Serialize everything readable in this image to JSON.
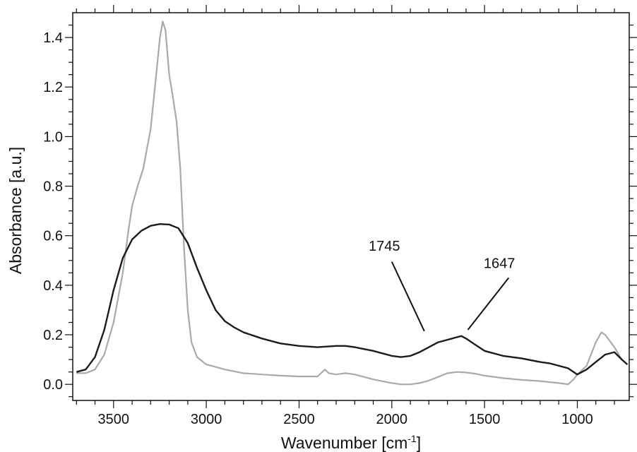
{
  "chart_data": {
    "type": "line",
    "title": "",
    "xlabel": "Wavenumber [cm-1]",
    "xlabel_parts": {
      "main": "Wavenumber [cm",
      "sup": "-1",
      "end": "]"
    },
    "ylabel": "Absorbance [a.u.]",
    "xlim": [
      3720,
      720
    ],
    "x_reversed": true,
    "ylim": [
      -0.065,
      1.5
    ],
    "x_ticks": [
      3500,
      3000,
      2500,
      2000,
      1500,
      1000
    ],
    "y_ticks": [
      0.0,
      0.2,
      0.4,
      0.6,
      0.8,
      1.0,
      1.2,
      1.4
    ],
    "x_tick_labels": [
      "3500",
      "3000",
      "2500",
      "2000",
      "1500",
      "1000"
    ],
    "y_tick_labels": [
      "0.0",
      "0.2",
      "0.4",
      "0.6",
      "0.8",
      "1.0",
      "1.2",
      "1.4"
    ],
    "grid": false,
    "series": [
      {
        "color": "#a6abaf",
        "points": [
          [
            3700,
            0.045
          ],
          [
            3650,
            0.045
          ],
          [
            3600,
            0.06
          ],
          [
            3550,
            0.12
          ],
          [
            3500,
            0.25
          ],
          [
            3450,
            0.45
          ],
          [
            3420,
            0.62
          ],
          [
            3400,
            0.72
          ],
          [
            3370,
            0.8
          ],
          [
            3340,
            0.87
          ],
          [
            3300,
            1.03
          ],
          [
            3270,
            1.25
          ],
          [
            3250,
            1.4
          ],
          [
            3235,
            1.465
          ],
          [
            3220,
            1.43
          ],
          [
            3200,
            1.25
          ],
          [
            3180,
            1.16
          ],
          [
            3160,
            1.06
          ],
          [
            3140,
            0.87
          ],
          [
            3120,
            0.55
          ],
          [
            3100,
            0.3
          ],
          [
            3080,
            0.17
          ],
          [
            3050,
            0.11
          ],
          [
            3000,
            0.08
          ],
          [
            2950,
            0.07
          ],
          [
            2900,
            0.06
          ],
          [
            2800,
            0.045
          ],
          [
            2700,
            0.04
          ],
          [
            2600,
            0.035
          ],
          [
            2500,
            0.032
          ],
          [
            2400,
            0.032
          ],
          [
            2360,
            0.06
          ],
          [
            2340,
            0.045
          ],
          [
            2300,
            0.04
          ],
          [
            2250,
            0.045
          ],
          [
            2200,
            0.04
          ],
          [
            2100,
            0.02
          ],
          [
            2000,
            0.005
          ],
          [
            1950,
            0.0
          ],
          [
            1900,
            0.0
          ],
          [
            1850,
            0.005
          ],
          [
            1800,
            0.015
          ],
          [
            1750,
            0.03
          ],
          [
            1700,
            0.045
          ],
          [
            1650,
            0.05
          ],
          [
            1600,
            0.048
          ],
          [
            1550,
            0.043
          ],
          [
            1500,
            0.035
          ],
          [
            1400,
            0.025
          ],
          [
            1300,
            0.018
          ],
          [
            1200,
            0.013
          ],
          [
            1100,
            0.005
          ],
          [
            1050,
            0.0
          ],
          [
            1020,
            0.02
          ],
          [
            1000,
            0.04
          ],
          [
            950,
            0.075
          ],
          [
            900,
            0.17
          ],
          [
            870,
            0.21
          ],
          [
            850,
            0.2
          ],
          [
            800,
            0.15
          ],
          [
            760,
            0.1
          ],
          [
            730,
            0.08
          ]
        ]
      },
      {
        "color": "#1e1a1a",
        "points": [
          [
            3700,
            0.05
          ],
          [
            3650,
            0.06
          ],
          [
            3600,
            0.11
          ],
          [
            3550,
            0.22
          ],
          [
            3500,
            0.38
          ],
          [
            3450,
            0.51
          ],
          [
            3400,
            0.585
          ],
          [
            3350,
            0.62
          ],
          [
            3300,
            0.64
          ],
          [
            3250,
            0.647
          ],
          [
            3200,
            0.645
          ],
          [
            3150,
            0.63
          ],
          [
            3100,
            0.57
          ],
          [
            3050,
            0.47
          ],
          [
            3000,
            0.38
          ],
          [
            2950,
            0.3
          ],
          [
            2900,
            0.255
          ],
          [
            2850,
            0.23
          ],
          [
            2800,
            0.21
          ],
          [
            2700,
            0.185
          ],
          [
            2600,
            0.165
          ],
          [
            2500,
            0.155
          ],
          [
            2400,
            0.15
          ],
          [
            2300,
            0.155
          ],
          [
            2250,
            0.155
          ],
          [
            2200,
            0.15
          ],
          [
            2100,
            0.135
          ],
          [
            2000,
            0.115
          ],
          [
            1950,
            0.11
          ],
          [
            1900,
            0.115
          ],
          [
            1850,
            0.13
          ],
          [
            1800,
            0.15
          ],
          [
            1750,
            0.17
          ],
          [
            1700,
            0.18
          ],
          [
            1650,
            0.19
          ],
          [
            1625,
            0.195
          ],
          [
            1600,
            0.185
          ],
          [
            1550,
            0.16
          ],
          [
            1500,
            0.135
          ],
          [
            1400,
            0.115
          ],
          [
            1300,
            0.105
          ],
          [
            1200,
            0.09
          ],
          [
            1150,
            0.085
          ],
          [
            1100,
            0.075
          ],
          [
            1050,
            0.065
          ],
          [
            1000,
            0.04
          ],
          [
            950,
            0.06
          ],
          [
            900,
            0.09
          ],
          [
            850,
            0.12
          ],
          [
            800,
            0.13
          ],
          [
            760,
            0.1
          ],
          [
            730,
            0.08
          ]
        ]
      }
    ],
    "annotations": [
      {
        "text": "1745",
        "text_at": [
          2040,
          0.54
        ],
        "line_from": [
          2000,
          0.495
        ],
        "line_to": [
          1825,
          0.215
        ]
      },
      {
        "text": "1647",
        "text_at": [
          1420,
          0.47
        ],
        "line_from": [
          1370,
          0.43
        ],
        "line_to": [
          1590,
          0.22
        ]
      }
    ]
  }
}
